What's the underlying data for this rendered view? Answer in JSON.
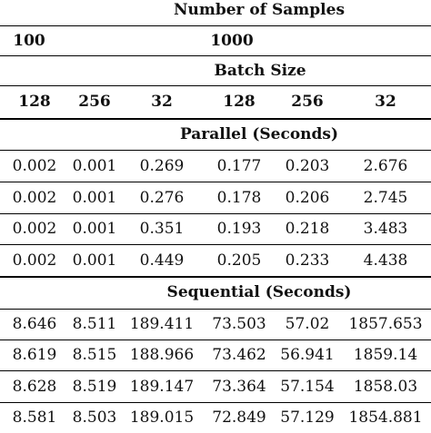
{
  "table": {
    "header": {
      "number_of_samples": "Number of Samples",
      "samples_100": "100",
      "samples_1000": "1000",
      "batch_size": "Batch Size",
      "batch_cols": [
        "128",
        "256",
        "32",
        "128",
        "256",
        "32"
      ]
    },
    "parallel": {
      "title": "Parallel (Seconds)",
      "rows": [
        [
          "0.002",
          "0.001",
          "0.269",
          "0.177",
          "0.203",
          "2.676"
        ],
        [
          "0.002",
          "0.001",
          "0.276",
          "0.178",
          "0.206",
          "2.745"
        ],
        [
          "0.002",
          "0.001",
          "0.351",
          "0.193",
          "0.218",
          "3.483"
        ],
        [
          "0.002",
          "0.001",
          "0.449",
          "0.205",
          "0.233",
          "4.438"
        ]
      ]
    },
    "sequential": {
      "title": "Sequential (Seconds)",
      "rows": [
        [
          "8.646",
          "8.511",
          "189.411",
          "73.503",
          "57.02",
          "1857.653"
        ],
        [
          "8.619",
          "8.515",
          "188.966",
          "73.462",
          "56.941",
          "1859.14"
        ],
        [
          "8.628",
          "8.519",
          "189.147",
          "73.364",
          "57.154",
          "1858.03"
        ],
        [
          "8.581",
          "8.503",
          "189.015",
          "72.849",
          "57.129",
          "1854.881"
        ]
      ]
    }
  }
}
